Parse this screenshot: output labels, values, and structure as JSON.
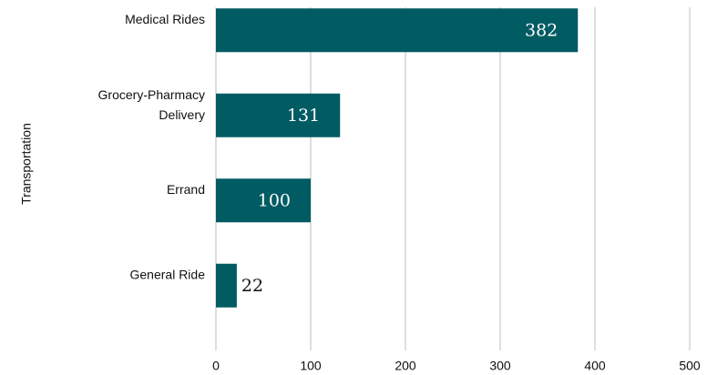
{
  "chart_data": {
    "type": "barh",
    "ylabel": "Transportation",
    "categories": [
      "Medical Rides",
      "Grocery-Pharmacy Delivery",
      "Errand",
      "General Ride"
    ],
    "values": [
      382,
      131,
      100,
      22
    ],
    "color": "#005b63",
    "xlim": [
      0,
      500
    ],
    "xticks": [
      0,
      100,
      200,
      300,
      400,
      500
    ],
    "grid": true
  }
}
